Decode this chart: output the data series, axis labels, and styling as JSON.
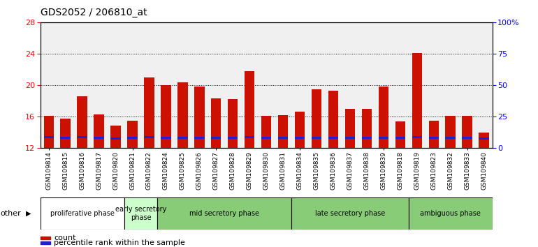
{
  "title": "GDS2052 / 206810_at",
  "samples": [
    "GSM109814",
    "GSM109815",
    "GSM109816",
    "GSM109817",
    "GSM109820",
    "GSM109821",
    "GSM109822",
    "GSM109824",
    "GSM109825",
    "GSM109826",
    "GSM109827",
    "GSM109828",
    "GSM109829",
    "GSM109830",
    "GSM109831",
    "GSM109834",
    "GSM109835",
    "GSM109836",
    "GSM109837",
    "GSM109838",
    "GSM109839",
    "GSM109818",
    "GSM109819",
    "GSM109823",
    "GSM109832",
    "GSM109833",
    "GSM109840"
  ],
  "count_values": [
    16.1,
    15.8,
    18.6,
    16.3,
    14.9,
    15.5,
    21.0,
    20.0,
    20.4,
    19.8,
    18.3,
    18.2,
    21.8,
    16.1,
    16.2,
    16.6,
    19.5,
    19.3,
    17.0,
    17.0,
    19.8,
    15.4,
    24.1,
    15.5,
    16.1,
    16.1,
    14.0
  ],
  "pct_bottom": [
    13.3,
    13.2,
    13.3,
    13.2,
    13.1,
    13.2,
    13.3,
    13.2,
    13.2,
    13.2,
    13.2,
    13.2,
    13.3,
    13.2,
    13.2,
    13.2,
    13.2,
    13.2,
    13.2,
    13.2,
    13.2,
    13.2,
    13.3,
    13.2,
    13.2,
    13.2,
    13.1
  ],
  "pct_height": [
    0.28,
    0.28,
    0.28,
    0.28,
    0.25,
    0.28,
    0.28,
    0.28,
    0.28,
    0.28,
    0.28,
    0.28,
    0.28,
    0.28,
    0.28,
    0.28,
    0.28,
    0.28,
    0.28,
    0.28,
    0.28,
    0.28,
    0.28,
    0.28,
    0.28,
    0.28,
    0.25
  ],
  "y_min": 12,
  "y_max": 28,
  "y_ticks_left": [
    12,
    16,
    20,
    24,
    28
  ],
  "y_ticks_right": [
    0,
    25,
    50,
    75,
    100
  ],
  "bar_color": "#cc1100",
  "percentile_color": "#2222cc",
  "phase_configs": [
    {
      "label": "proliferative phase",
      "start": 0,
      "end": 5,
      "color": "#ffffff"
    },
    {
      "label": "early secretory\nphase",
      "start": 5,
      "end": 7,
      "color": "#ccffcc"
    },
    {
      "label": "mid secretory phase",
      "start": 7,
      "end": 15,
      "color": "#88cc77"
    },
    {
      "label": "late secretory phase",
      "start": 15,
      "end": 22,
      "color": "#88cc77"
    },
    {
      "label": "ambiguous phase",
      "start": 22,
      "end": 27,
      "color": "#88cc77"
    }
  ],
  "legend_count_label": "count",
  "legend_percentile_label": "percentile rank within the sample",
  "chart_bg": "#f0f0f0",
  "bar_width": 0.6
}
